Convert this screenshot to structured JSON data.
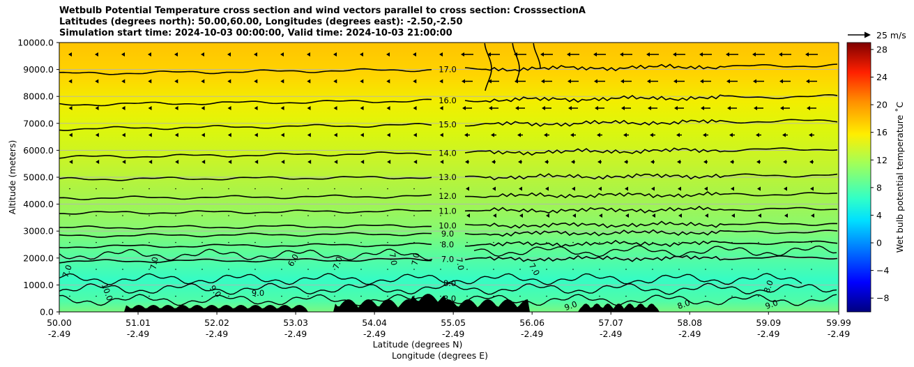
{
  "chart_data": {
    "type": "heatmap",
    "title_lines": [
      "Wetbulb Potential Temperature cross section and wind vectors parallel to cross section: CrosssectionA",
      "Latitudes (degrees north): 50.00,60.00, Longitudes (degrees east): -2.50,-2.50",
      "Simulation start time: 2024-10-03 00:00:00, Valid time: 2024-10-03 21:00:00"
    ],
    "xlabel": "Latitude (degrees N)",
    "xlabel2": "Longitude (degrees E)",
    "ylabel": "Altitude (meters)",
    "x_ticks": [
      {
        "lat": "50.00",
        "lon": "-2.49"
      },
      {
        "lat": "51.01",
        "lon": "-2.49"
      },
      {
        "lat": "52.02",
        "lon": "-2.49"
      },
      {
        "lat": "53.03",
        "lon": "-2.49"
      },
      {
        "lat": "54.04",
        "lon": "-2.49"
      },
      {
        "lat": "55.05",
        "lon": "-2.49"
      },
      {
        "lat": "56.06",
        "lon": "-2.49"
      },
      {
        "lat": "57.07",
        "lon": "-2.49"
      },
      {
        "lat": "58.08",
        "lon": "-2.49"
      },
      {
        "lat": "59.09",
        "lon": "-2.49"
      },
      {
        "lat": "59.99",
        "lon": "-2.49"
      }
    ],
    "xlim": [
      50.0,
      59.99
    ],
    "ylim": [
      0,
      10000
    ],
    "y_ticks": [
      "0.0",
      "1000.0",
      "2000.0",
      "3000.0",
      "4000.0",
      "5000.0",
      "6000.0",
      "7000.0",
      "8000.0",
      "9000.0",
      "10000.0"
    ],
    "grid": "horizontal",
    "colorbar": {
      "label": "Wet bulb potential temperature $^\\circ$C",
      "label_text": "Wet bulb potential temperature ˚C",
      "ticks": [
        "−8",
        "−4",
        "0",
        "4",
        "8",
        "12",
        "16",
        "20",
        "24",
        "28"
      ],
      "range": [
        -10,
        29
      ],
      "colormap": "jet"
    },
    "wind_key": {
      "label": "25 m/s"
    },
    "contour_levels": [
      {
        "label": "17.0",
        "altitude": 9000
      },
      {
        "label": "16.0",
        "altitude": 7850
      },
      {
        "label": "15.0",
        "altitude": 6950
      },
      {
        "label": "14.0",
        "altitude": 5900
      },
      {
        "label": "13.0",
        "altitude": 5000
      },
      {
        "label": "12.0",
        "altitude": 4300
      },
      {
        "label": "11.0",
        "altitude": 3750
      },
      {
        "label": "10.0",
        "altitude": 3200
      },
      {
        "label": "9.0",
        "altitude": 2900
      },
      {
        "label": "8.0",
        "altitude": 2500
      },
      {
        "label": "7.0",
        "altitude": 1950
      }
    ],
    "low_level_labels": [
      "6.0",
      "7.0",
      "8.0",
      "9.0",
      "10.0"
    ]
  },
  "colors": {
    "upper_field": "#ffcc00",
    "mid_field": "#d8f010",
    "lower_field": "#33ffc8",
    "terrain": "#000000",
    "grid": "#b0b0b0"
  }
}
